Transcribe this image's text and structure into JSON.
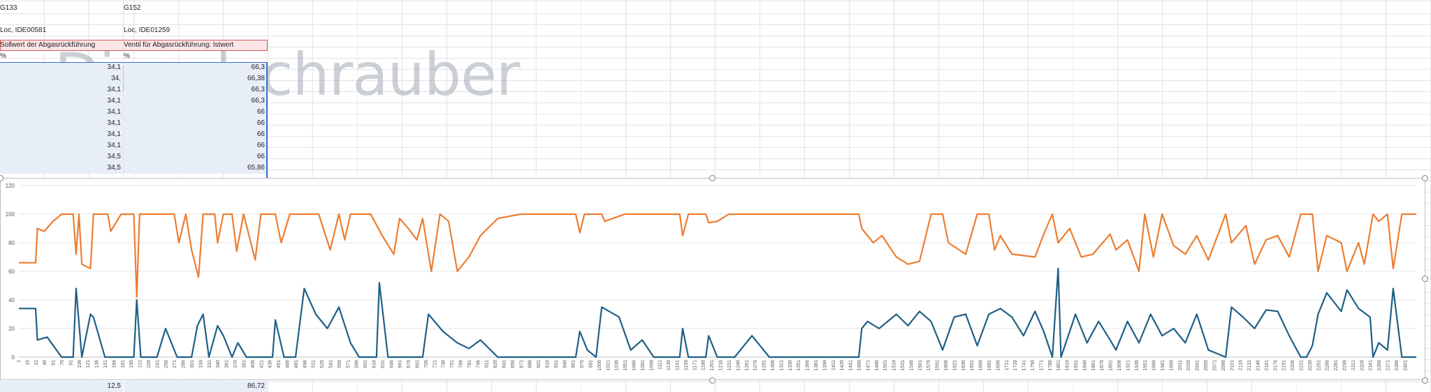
{
  "sheet": {
    "row1": {
      "a": "G133",
      "b": "G152"
    },
    "row3": {
      "a": "Loc, IDE00581",
      "b": "Loc, IDE01259"
    },
    "headers": {
      "a": "Sollwert der Abgasrückführung",
      "b": "Ventil für Abgasrückführung: Istwert"
    },
    "units": {
      "a": "%",
      "b": "%"
    },
    "rows": [
      {
        "a": "34,1",
        "b": "66,3"
      },
      {
        "a": "34,",
        "b": "66,38"
      },
      {
        "a": "34,1",
        "b": "66,3"
      },
      {
        "a": "34,1",
        "b": "66,3"
      },
      {
        "a": "34,1",
        "b": "66"
      },
      {
        "a": "34,1",
        "b": "66"
      },
      {
        "a": "34,1",
        "b": "66"
      },
      {
        "a": "34,1",
        "b": "66"
      },
      {
        "a": "34,5",
        "b": "66"
      },
      {
        "a": "34,5",
        "b": "65,86"
      }
    ],
    "bottom": {
      "a": "12,5",
      "b": "86,72"
    }
  },
  "watermark": "Dieselschrauber",
  "colors": {
    "series_orange": "#ed7d31",
    "series_blue": "#1f5f86",
    "gridline": "#e6e6e6",
    "axis_text": "#595959"
  },
  "chart_data": {
    "type": "line",
    "title": "",
    "xlabel": "",
    "ylabel": "",
    "ylim": [
      0,
      120
    ],
    "yticks": [
      0,
      20,
      40,
      60,
      80,
      100,
      120
    ],
    "x_range": [
      1,
      2420
    ],
    "x_tick_start": 1,
    "x_tick_step": 15,
    "x_tick_last": 2401,
    "grid": true,
    "legend": "none",
    "series": [
      {
        "color": "#ed7d31",
        "points": [
          [
            1,
            66
          ],
          [
            30,
            66
          ],
          [
            33,
            90
          ],
          [
            45,
            88
          ],
          [
            60,
            95
          ],
          [
            75,
            100
          ],
          [
            95,
            100
          ],
          [
            100,
            72
          ],
          [
            105,
            100
          ],
          [
            110,
            65
          ],
          [
            125,
            62
          ],
          [
            130,
            100
          ],
          [
            155,
            100
          ],
          [
            160,
            88
          ],
          [
            178,
            100
          ],
          [
            200,
            100
          ],
          [
            205,
            42
          ],
          [
            210,
            100
          ],
          [
            270,
            100
          ],
          [
            278,
            80
          ],
          [
            290,
            100
          ],
          [
            300,
            75
          ],
          [
            312,
            56
          ],
          [
            320,
            100
          ],
          [
            340,
            100
          ],
          [
            345,
            80
          ],
          [
            355,
            100
          ],
          [
            370,
            100
          ],
          [
            378,
            74
          ],
          [
            390,
            100
          ],
          [
            410,
            68
          ],
          [
            420,
            100
          ],
          [
            445,
            100
          ],
          [
            455,
            80
          ],
          [
            470,
            100
          ],
          [
            490,
            100
          ],
          [
            520,
            100
          ],
          [
            540,
            75
          ],
          [
            555,
            100
          ],
          [
            565,
            82
          ],
          [
            575,
            100
          ],
          [
            610,
            100
          ],
          [
            630,
            85
          ],
          [
            650,
            72
          ],
          [
            660,
            97
          ],
          [
            675,
            90
          ],
          [
            690,
            82
          ],
          [
            700,
            97
          ],
          [
            715,
            60
          ],
          [
            730,
            100
          ],
          [
            745,
            95
          ],
          [
            760,
            60
          ],
          [
            780,
            70
          ],
          [
            800,
            85
          ],
          [
            830,
            97
          ],
          [
            870,
            100
          ],
          [
            900,
            100
          ],
          [
            930,
            100
          ],
          [
            965,
            100
          ],
          [
            972,
            87
          ],
          [
            980,
            100
          ],
          [
            1010,
            100
          ],
          [
            1015,
            95
          ],
          [
            1050,
            100
          ],
          [
            1100,
            100
          ],
          [
            1145,
            100
          ],
          [
            1150,
            85
          ],
          [
            1160,
            100
          ],
          [
            1190,
            100
          ],
          [
            1195,
            94
          ],
          [
            1210,
            95
          ],
          [
            1230,
            100
          ],
          [
            1300,
            100
          ],
          [
            1380,
            100
          ],
          [
            1455,
            100
          ],
          [
            1460,
            90
          ],
          [
            1480,
            80
          ],
          [
            1495,
            85
          ],
          [
            1520,
            70
          ],
          [
            1540,
            65
          ],
          [
            1560,
            67
          ],
          [
            1580,
            100
          ],
          [
            1600,
            100
          ],
          [
            1610,
            80
          ],
          [
            1640,
            72
          ],
          [
            1660,
            100
          ],
          [
            1680,
            100
          ],
          [
            1690,
            75
          ],
          [
            1700,
            85
          ],
          [
            1720,
            72
          ],
          [
            1760,
            70
          ],
          [
            1775,
            86
          ],
          [
            1790,
            100
          ],
          [
            1800,
            80
          ],
          [
            1820,
            90
          ],
          [
            1840,
            70
          ],
          [
            1860,
            72
          ],
          [
            1890,
            86
          ],
          [
            1900,
            75
          ],
          [
            1920,
            82
          ],
          [
            1940,
            60
          ],
          [
            1950,
            100
          ],
          [
            1965,
            70
          ],
          [
            1980,
            100
          ],
          [
            2000,
            78
          ],
          [
            2020,
            72
          ],
          [
            2040,
            85
          ],
          [
            2060,
            68
          ],
          [
            2090,
            100
          ],
          [
            2100,
            80
          ],
          [
            2125,
            92
          ],
          [
            2140,
            65
          ],
          [
            2160,
            82
          ],
          [
            2180,
            85
          ],
          [
            2200,
            70
          ],
          [
            2220,
            100
          ],
          [
            2230,
            100
          ],
          [
            2240,
            100
          ],
          [
            2250,
            60
          ],
          [
            2265,
            85
          ],
          [
            2290,
            80
          ],
          [
            2300,
            60
          ],
          [
            2320,
            80
          ],
          [
            2330,
            65
          ],
          [
            2345,
            100
          ],
          [
            2355,
            95
          ],
          [
            2370,
            100
          ],
          [
            2380,
            62
          ],
          [
            2395,
            100
          ],
          [
            2420,
            100
          ]
        ]
      },
      {
        "color": "#1f5f86",
        "points": [
          [
            1,
            34
          ],
          [
            30,
            34
          ],
          [
            33,
            12
          ],
          [
            50,
            14
          ],
          [
            75,
            0
          ],
          [
            95,
            0
          ],
          [
            100,
            48
          ],
          [
            110,
            0
          ],
          [
            125,
            30
          ],
          [
            130,
            28
          ],
          [
            150,
            0
          ],
          [
            200,
            0
          ],
          [
            205,
            40
          ],
          [
            212,
            0
          ],
          [
            240,
            0
          ],
          [
            255,
            20
          ],
          [
            275,
            0
          ],
          [
            300,
            0
          ],
          [
            310,
            22
          ],
          [
            320,
            30
          ],
          [
            330,
            0
          ],
          [
            345,
            22
          ],
          [
            355,
            15
          ],
          [
            370,
            0
          ],
          [
            380,
            10
          ],
          [
            395,
            0
          ],
          [
            440,
            0
          ],
          [
            445,
            26
          ],
          [
            460,
            0
          ],
          [
            480,
            0
          ],
          [
            495,
            48
          ],
          [
            515,
            30
          ],
          [
            535,
            20
          ],
          [
            555,
            35
          ],
          [
            575,
            10
          ],
          [
            590,
            0
          ],
          [
            620,
            0
          ],
          [
            625,
            52
          ],
          [
            640,
            0
          ],
          [
            700,
            0
          ],
          [
            710,
            30
          ],
          [
            735,
            18
          ],
          [
            760,
            10
          ],
          [
            780,
            6
          ],
          [
            800,
            12
          ],
          [
            830,
            0
          ],
          [
            870,
            0
          ],
          [
            900,
            0
          ],
          [
            965,
            0
          ],
          [
            972,
            18
          ],
          [
            985,
            5
          ],
          [
            1000,
            0
          ],
          [
            1010,
            35
          ],
          [
            1040,
            28
          ],
          [
            1060,
            5
          ],
          [
            1080,
            12
          ],
          [
            1100,
            0
          ],
          [
            1145,
            0
          ],
          [
            1150,
            20
          ],
          [
            1160,
            0
          ],
          [
            1190,
            0
          ],
          [
            1195,
            15
          ],
          [
            1210,
            0
          ],
          [
            1240,
            0
          ],
          [
            1250,
            5
          ],
          [
            1270,
            15
          ],
          [
            1300,
            0
          ],
          [
            1380,
            0
          ],
          [
            1455,
            0
          ],
          [
            1460,
            20
          ],
          [
            1470,
            25
          ],
          [
            1490,
            20
          ],
          [
            1520,
            30
          ],
          [
            1540,
            22
          ],
          [
            1560,
            32
          ],
          [
            1580,
            25
          ],
          [
            1600,
            5
          ],
          [
            1620,
            28
          ],
          [
            1640,
            30
          ],
          [
            1660,
            8
          ],
          [
            1680,
            30
          ],
          [
            1700,
            34
          ],
          [
            1720,
            28
          ],
          [
            1740,
            15
          ],
          [
            1760,
            32
          ],
          [
            1775,
            18
          ],
          [
            1790,
            0
          ],
          [
            1800,
            62
          ],
          [
            1805,
            0
          ],
          [
            1830,
            30
          ],
          [
            1850,
            10
          ],
          [
            1870,
            25
          ],
          [
            1890,
            12
          ],
          [
            1900,
            5
          ],
          [
            1920,
            25
          ],
          [
            1940,
            10
          ],
          [
            1960,
            30
          ],
          [
            1980,
            15
          ],
          [
            2000,
            20
          ],
          [
            2020,
            10
          ],
          [
            2040,
            30
          ],
          [
            2060,
            5
          ],
          [
            2090,
            0
          ],
          [
            2100,
            35
          ],
          [
            2120,
            28
          ],
          [
            2140,
            20
          ],
          [
            2160,
            33
          ],
          [
            2180,
            32
          ],
          [
            2200,
            15
          ],
          [
            2220,
            0
          ],
          [
            2230,
            0
          ],
          [
            2240,
            8
          ],
          [
            2250,
            30
          ],
          [
            2265,
            45
          ],
          [
            2290,
            32
          ],
          [
            2300,
            47
          ],
          [
            2320,
            34
          ],
          [
            2340,
            28
          ],
          [
            2345,
            0
          ],
          [
            2355,
            10
          ],
          [
            2370,
            5
          ],
          [
            2380,
            48
          ],
          [
            2395,
            0
          ],
          [
            2420,
            0
          ]
        ]
      }
    ]
  }
}
